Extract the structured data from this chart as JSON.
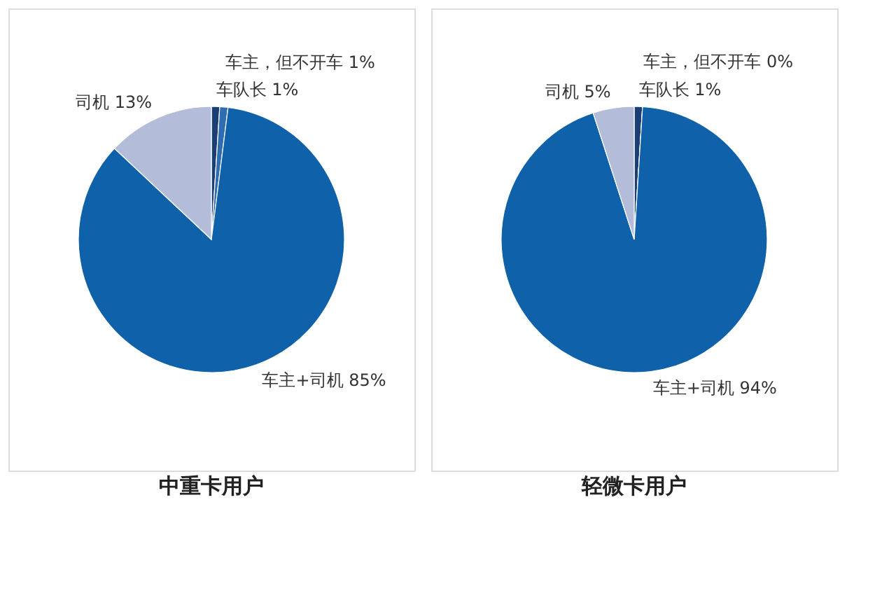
{
  "chart_data": [
    {
      "type": "pie",
      "title": "中重卡用户",
      "categories": [
        "车队长",
        "车主，但不开车",
        "车主+司机",
        "司机"
      ],
      "values": [
        1,
        1,
        85,
        13
      ],
      "value_labels": [
        "1%",
        "1%",
        "85%",
        "13%"
      ],
      "colors": [
        "#1b3f73",
        "#2f6db0",
        "#0f62a9",
        "#b3bdd9"
      ]
    },
    {
      "type": "pie",
      "title": "轻微卡用户",
      "categories": [
        "车队长",
        "车主，但不开车",
        "车主+司机",
        "司机"
      ],
      "values": [
        1,
        0,
        94,
        5
      ],
      "value_labels": [
        "1%",
        "0%",
        "94%",
        "5%"
      ],
      "colors": [
        "#1b3f73",
        "#2f6db0",
        "#0f62a9",
        "#b3bdd9"
      ]
    }
  ]
}
